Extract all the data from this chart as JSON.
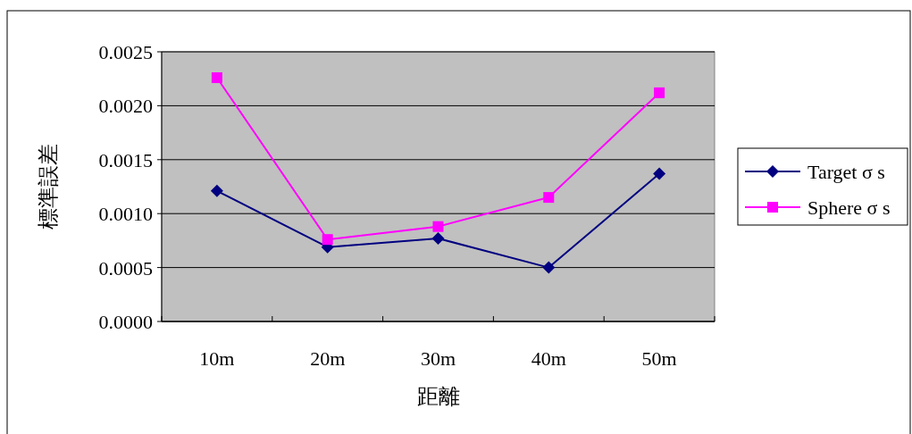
{
  "chart_data": {
    "type": "line",
    "xlabel": "距離",
    "ylabel": "標準誤差",
    "categories": [
      "10m",
      "20m",
      "30m",
      "40m",
      "50m"
    ],
    "series": [
      {
        "name": "Target σ s",
        "color": "#000080",
        "marker": "diamond",
        "values": [
          0.00121,
          0.00069,
          0.00077,
          0.0005,
          0.00137
        ]
      },
      {
        "name": "Sphere σ s",
        "color": "#ff00ff",
        "marker": "square",
        "values": [
          0.00226,
          0.00076,
          0.00088,
          0.00115,
          0.00212
        ]
      }
    ],
    "ylim": [
      0,
      0.0025
    ],
    "yticks": [
      {
        "value": 0,
        "label": "0.0000"
      },
      {
        "value": 0.0005,
        "label": "0.0005"
      },
      {
        "value": 0.001,
        "label": "0.0010"
      },
      {
        "value": 0.0015,
        "label": "0.0015"
      },
      {
        "value": 0.002,
        "label": "0.0020"
      },
      {
        "value": 0.0025,
        "label": "0.0025"
      }
    ],
    "grid": "y",
    "legend": "right"
  }
}
